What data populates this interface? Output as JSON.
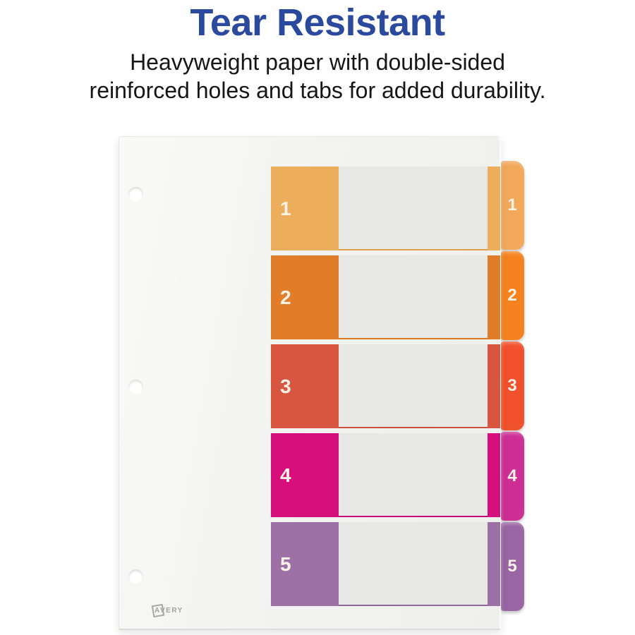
{
  "header": {
    "title": "Tear Resistant",
    "subtitle_line1": "Heavyweight paper with double-sided",
    "subtitle_line2": "reinforced holes and tabs for added durability.",
    "title_color": "#2B4A9E",
    "subtitle_color": "#161616"
  },
  "sheet": {
    "brand": "AVERY",
    "hole_count": 3,
    "row_background": "#E8E8E6",
    "number_color": "#FAF2E6",
    "rows": [
      {
        "label": "1",
        "block_color": "#ECAE5B",
        "line_color": "#E29E49",
        "tab_color": "#F3A95C"
      },
      {
        "label": "2",
        "block_color": "#E17D28",
        "line_color": "#D87423",
        "tab_color": "#F5821E"
      },
      {
        "label": "3",
        "block_color": "#D85640",
        "line_color": "#CD4E39",
        "tab_color": "#F1512C"
      },
      {
        "label": "4",
        "block_color": "#D60F7D",
        "line_color": "#C70D73",
        "tab_color": "#CE2F95"
      },
      {
        "label": "5",
        "block_color": "#9D71A5",
        "line_color": "#90679A",
        "tab_color": "#9966A3"
      }
    ]
  }
}
